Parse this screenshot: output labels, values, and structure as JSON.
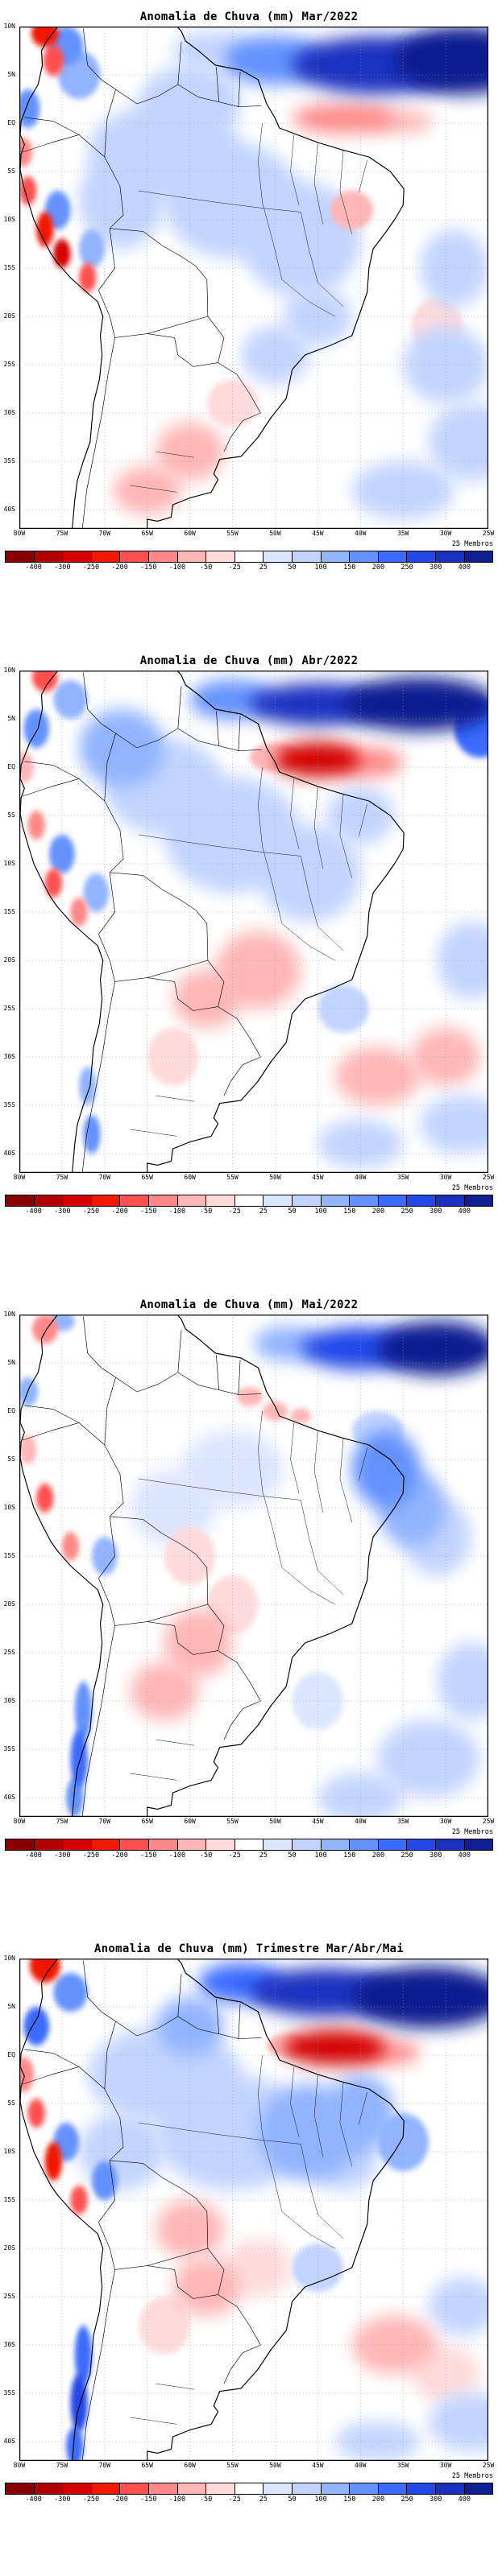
{
  "panels": [
    {
      "title": "Anomalia de Chuva (mm) Mar/2022",
      "members": "25 Membros"
    },
    {
      "title": "Anomalia de Chuva (mm) Abr/2022",
      "members": "25 Membros"
    },
    {
      "title": "Anomalia de Chuva (mm) Mai/2022",
      "members": "25 Membros"
    },
    {
      "title": "Anomalia de Chuva (mm) Trimestre Mar/Abr/Mai",
      "members": "25 Membros"
    }
  ],
  "axis": {
    "lat": [
      "10N",
      "5N",
      "EQ",
      "5S",
      "10S",
      "15S",
      "20S",
      "25S",
      "30S",
      "35S",
      "40S"
    ],
    "lon": [
      "80W",
      "75W",
      "70W",
      "65W",
      "60W",
      "55W",
      "50W",
      "45W",
      "40W",
      "35W",
      "30W",
      "25W"
    ]
  },
  "colorbar": {
    "ticks": [
      "-400",
      "-300",
      "-250",
      "-200",
      "-150",
      "-100",
      "-50",
      "-25",
      "25",
      "50",
      "100",
      "150",
      "200",
      "250",
      "300",
      "400"
    ],
    "levels": [
      -400,
      -300,
      -250,
      -200,
      -150,
      -100,
      -50,
      -25,
      25,
      50,
      100,
      150,
      200,
      250,
      300,
      400
    ],
    "colors": [
      "#8a0000",
      "#b00000",
      "#d40000",
      "#f01800",
      "#ff5050",
      "#ff8888",
      "#ffb6b6",
      "#ffdcdc",
      "#ffffff",
      "#dde6ff",
      "#c2d4ff",
      "#92b4ff",
      "#6492ff",
      "#3a6cff",
      "#2348e8",
      "#1a30c0",
      "#101f90"
    ]
  },
  "chart_data": {
    "type": "heatmap",
    "shared": {
      "variable": "Anomalia de Chuva",
      "units": "mm",
      "region": "South America",
      "lon_range_deg": [
        -80,
        -25
      ],
      "lat_range_deg": [
        10,
        -42
      ],
      "lat_ticks": [
        "10N",
        "5N",
        "EQ",
        "5S",
        "10S",
        "15S",
        "20S",
        "25S",
        "30S",
        "35S",
        "40S"
      ],
      "lon_ticks": [
        "80W",
        "75W",
        "70W",
        "65W",
        "60W",
        "55W",
        "50W",
        "45W",
        "40W",
        "35W",
        "30W",
        "25W"
      ],
      "levels_mm": [
        -400,
        -300,
        -250,
        -200,
        -150,
        -100,
        -50,
        -25,
        25,
        50,
        100,
        150,
        200,
        250,
        300,
        400
      ],
      "ensemble_members": 25,
      "anomaly_format": [
        "lon_deg",
        "lat_deg",
        "radius_lon_deg",
        "radius_lat_deg",
        "anomaly_mm"
      ]
    },
    "maps": [
      {
        "period": "Mar/2022",
        "title": "Anomalia de Chuva (mm) Mar/2022",
        "anomalies": [
          [
            -38,
            6,
            10,
            3,
            300
          ],
          [
            -28,
            6.5,
            8,
            3.5,
            400
          ],
          [
            -50,
            6.5,
            6,
            2.5,
            150
          ],
          [
            -57,
            7.5,
            5,
            2,
            75
          ],
          [
            -42,
            0.5,
            6,
            1.5,
            -150
          ],
          [
            -35.5,
            0.2,
            4,
            1.2,
            -75
          ],
          [
            -77,
            9.3,
            1.6,
            1.4,
            -250
          ],
          [
            -76,
            6.5,
            1.2,
            1.6,
            -200
          ],
          [
            -74.5,
            8,
            2,
            2,
            150
          ],
          [
            -73,
            5,
            2.5,
            2.5,
            100
          ],
          [
            -79,
            1.5,
            1.4,
            2,
            150
          ],
          [
            -79.5,
            -3,
            1,
            1.5,
            -150
          ],
          [
            -79,
            -7,
            1,
            1.5,
            -200
          ],
          [
            -77,
            -11,
            1,
            1.8,
            -250
          ],
          [
            -75,
            -13.5,
            1,
            1.5,
            -300
          ],
          [
            -72,
            -16,
            1,
            1.5,
            -200
          ],
          [
            -75.5,
            -9,
            1.5,
            2,
            150
          ],
          [
            -71.5,
            -13,
            1.5,
            2,
            100
          ],
          [
            -63,
            -3,
            9,
            5,
            50
          ],
          [
            -55,
            -8,
            8,
            6,
            50
          ],
          [
            -47,
            -12,
            7,
            6,
            50
          ],
          [
            -68,
            -8,
            5,
            5,
            75
          ],
          [
            -60,
            2,
            6,
            4,
            75
          ],
          [
            -45,
            -20,
            4,
            3,
            75
          ],
          [
            -50,
            -24,
            4,
            3,
            50
          ],
          [
            -30,
            -25,
            5,
            4,
            50
          ],
          [
            -27,
            -33,
            5,
            4,
            75
          ],
          [
            -35,
            -38,
            6,
            3,
            50
          ],
          [
            -29,
            -15,
            4,
            4,
            50
          ],
          [
            -60,
            -34,
            4,
            3,
            -60
          ],
          [
            -65,
            -38,
            4,
            2.5,
            -60
          ],
          [
            -41,
            -9,
            2.5,
            2,
            -60
          ],
          [
            -55,
            -29,
            3,
            2.5,
            -40
          ],
          [
            -31,
            -21,
            3,
            3,
            -40
          ]
        ]
      },
      {
        "period": "Abr/2022",
        "title": "Anomalia de Chuva (mm) Abr/2022",
        "anomalies": [
          [
            -45,
            6.5,
            8,
            2.2,
            300
          ],
          [
            -33,
            6.5,
            9,
            2.8,
            400
          ],
          [
            -55,
            7,
            5,
            2,
            150
          ],
          [
            -26,
            4,
            3,
            3,
            200
          ],
          [
            -45,
            0.8,
            5,
            1.8,
            -300
          ],
          [
            -39,
            0.5,
            4,
            1.5,
            -150
          ],
          [
            -50,
            1,
            3,
            1.5,
            -100
          ],
          [
            -77,
            9.3,
            1.5,
            1.5,
            -200
          ],
          [
            -74,
            7,
            2,
            2,
            100
          ],
          [
            -78,
            4,
            1.5,
            2,
            150
          ],
          [
            -79.5,
            0,
            1.2,
            1.6,
            -100
          ],
          [
            -78,
            -6,
            1,
            1.5,
            -150
          ],
          [
            -76,
            -12,
            1,
            1.5,
            -200
          ],
          [
            -73,
            -15,
            1,
            1.5,
            -150
          ],
          [
            -75,
            -9,
            1.5,
            2,
            150
          ],
          [
            -71,
            -13,
            1.5,
            2,
            100
          ],
          [
            -68,
            2,
            5,
            4,
            100
          ],
          [
            -63,
            -2,
            7,
            5,
            75
          ],
          [
            -55,
            -7,
            8,
            6,
            50
          ],
          [
            -46,
            -11,
            6,
            5,
            50
          ],
          [
            -40,
            -5,
            4,
            3,
            50
          ],
          [
            -52,
            -21,
            5,
            4,
            -60
          ],
          [
            -58,
            -24,
            4,
            3,
            -60
          ],
          [
            -62,
            -30,
            3,
            3,
            -40
          ],
          [
            -38,
            -32,
            5,
            3,
            -60
          ],
          [
            -30,
            -30,
            4,
            3,
            -60
          ],
          [
            -28,
            -37,
            5,
            3,
            75
          ],
          [
            -40,
            -39,
            5,
            2.5,
            50
          ],
          [
            -42,
            -25,
            3,
            2.5,
            50
          ],
          [
            -27,
            -20,
            4,
            4,
            50
          ],
          [
            -72,
            -33,
            1,
            2,
            100
          ],
          [
            -71.5,
            -38,
            1,
            2,
            150
          ]
        ]
      },
      {
        "period": "Mai/2022",
        "title": "Anomalia de Chuva (mm) Mai/2022",
        "anomalies": [
          [
            -40,
            6.5,
            7,
            2.2,
            250
          ],
          [
            -31,
            6.5,
            7,
            2.8,
            400
          ],
          [
            -48.5,
            7,
            4,
            1.8,
            100
          ],
          [
            -50,
            0,
            1.5,
            1,
            -100
          ],
          [
            -47,
            -0.5,
            1.2,
            0.8,
            -75
          ],
          [
            -53,
            1.5,
            1.5,
            1,
            -60
          ],
          [
            -37,
            -6,
            4,
            4,
            150
          ],
          [
            -34,
            -10,
            4,
            4,
            100
          ],
          [
            -38,
            -2,
            3,
            2,
            75
          ],
          [
            -31,
            -13,
            4,
            4,
            75
          ],
          [
            -55,
            -6,
            6,
            4,
            25
          ],
          [
            -62,
            -10,
            5,
            4,
            25
          ],
          [
            -59,
            -24,
            4,
            3.5,
            -60
          ],
          [
            -63,
            -29,
            4,
            3,
            -60
          ],
          [
            -55,
            -20,
            3,
            3,
            -40
          ],
          [
            -60,
            -15,
            3,
            3,
            -40
          ],
          [
            -77,
            -9,
            1,
            1.5,
            -200
          ],
          [
            -74,
            -14,
            1,
            1.5,
            -150
          ],
          [
            -79,
            -4,
            1,
            1.5,
            -100
          ],
          [
            -70,
            -15,
            1.5,
            2,
            100
          ],
          [
            -77,
            8.5,
            1.5,
            1.5,
            -150
          ],
          [
            -75,
            9.3,
            1.5,
            1,
            100
          ],
          [
            -79,
            2,
            1.2,
            1.5,
            100
          ],
          [
            -72.5,
            -31,
            1,
            3,
            150
          ],
          [
            -73,
            -36,
            1,
            3,
            200
          ],
          [
            -73.5,
            -40,
            1,
            2,
            150
          ],
          [
            -32,
            -36,
            6,
            4,
            75
          ],
          [
            -27,
            -28,
            4,
            4,
            50
          ],
          [
            -40,
            -40,
            5,
            2.5,
            50
          ],
          [
            -45,
            -30,
            3,
            3,
            25
          ]
        ]
      },
      {
        "period": "Trimestre Mar/Abr/Mai",
        "title": "Anomalia de Chuva (mm) Trimestre Mar/Abr/Mai",
        "anomalies": [
          [
            -44,
            6.5,
            9,
            2.5,
            300
          ],
          [
            -32,
            6,
            9,
            3.2,
            400
          ],
          [
            -54,
            7.5,
            5,
            2,
            200
          ],
          [
            -60,
            3,
            4,
            3,
            100
          ],
          [
            -43,
            0.8,
            6,
            1.8,
            -300
          ],
          [
            -37,
            0.3,
            4,
            1.2,
            -150
          ],
          [
            -48.5,
            1,
            2.5,
            1.2,
            -100
          ],
          [
            -77,
            9.3,
            1.8,
            1.8,
            -250
          ],
          [
            -74,
            6.5,
            2,
            2,
            150
          ],
          [
            -78,
            3,
            1.5,
            2,
            200
          ],
          [
            -79.5,
            -2,
            1.2,
            1.8,
            -150
          ],
          [
            -78,
            -6,
            1,
            1.5,
            -200
          ],
          [
            -76,
            -11,
            1,
            2,
            -250
          ],
          [
            -73,
            -15,
            1,
            1.5,
            -200
          ],
          [
            -74.5,
            -9,
            1.5,
            2,
            150
          ],
          [
            -70,
            -13,
            1.5,
            2,
            150
          ],
          [
            -63,
            -2,
            9,
            5,
            75
          ],
          [
            -55,
            -8,
            9,
            6,
            75
          ],
          [
            -46,
            -8,
            6,
            5,
            100
          ],
          [
            -40,
            -6,
            4,
            4,
            100
          ],
          [
            -68,
            -10,
            5,
            4,
            50
          ],
          [
            -42,
            -11,
            4,
            3,
            75
          ],
          [
            -35,
            -9,
            3,
            3,
            100
          ],
          [
            -60,
            -18,
            4,
            3,
            -60
          ],
          [
            -58,
            -24,
            4,
            3,
            -60
          ],
          [
            -63,
            -28,
            3,
            3,
            -40
          ],
          [
            -52,
            -22,
            4,
            3,
            -40
          ],
          [
            -36,
            -30,
            5,
            3,
            -60
          ],
          [
            -30,
            -33,
            4,
            3,
            -40
          ],
          [
            -27,
            -38,
            5,
            3,
            75
          ],
          [
            -38,
            -40,
            5,
            2,
            50
          ],
          [
            -45,
            -22,
            3,
            2.5,
            50
          ],
          [
            -28,
            -26,
            4,
            3,
            50
          ],
          [
            -72.5,
            -31,
            1,
            3,
            200
          ],
          [
            -73,
            -36,
            1,
            3,
            250
          ],
          [
            -73.5,
            -40.5,
            1,
            2,
            200
          ]
        ]
      }
    ]
  }
}
